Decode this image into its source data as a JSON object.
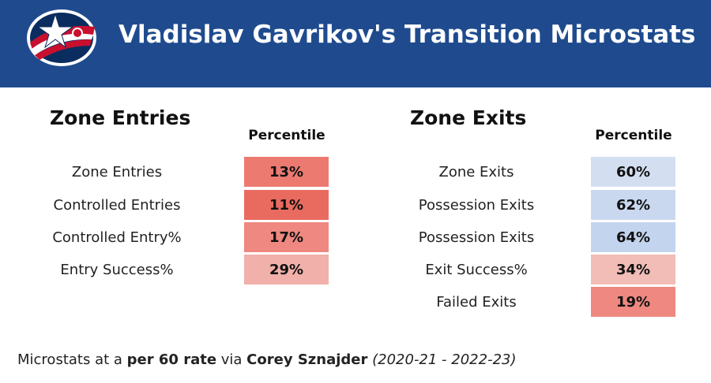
{
  "header": {
    "title": "Vladislav Gavrikov's Transition Microstats",
    "logo_icon": "columbus-blue-jackets-logo-icon",
    "background": "#1f4b8e"
  },
  "entries": {
    "title": "Zone Entries",
    "column_header": "Percentile",
    "rows": [
      {
        "label": "Zone Entries",
        "value": "13%",
        "color": "#ec7a70"
      },
      {
        "label": "Controlled Entries",
        "value": "11%",
        "color": "#e96b60"
      },
      {
        "label": "Controlled Entry%",
        "value": "17%",
        "color": "#ee8880"
      },
      {
        "label": "Entry Success%",
        "value": "29%",
        "color": "#f1b0aa"
      }
    ]
  },
  "exits": {
    "title": "Zone Exits",
    "column_header": "Percentile",
    "rows": [
      {
        "label": "Zone Exits",
        "value": "60%",
        "color": "#d3dff1"
      },
      {
        "label": "Possession Exits",
        "value": "62%",
        "color": "#c9d8ef"
      },
      {
        "label": "Possession Exits",
        "value": "64%",
        "color": "#c3d4ee"
      },
      {
        "label": "Exit Success%",
        "value": "34%",
        "color": "#f2bcb7"
      },
      {
        "label": "Failed Exits",
        "value": "19%",
        "color": "#ee8880"
      }
    ]
  },
  "footer": {
    "prefix": "Microstats at a ",
    "rate": "per 60 rate",
    "via": " via ",
    "source": "Corey Sznajder",
    "space": " ",
    "seasons": "(2020-21 - 2022-23)"
  }
}
